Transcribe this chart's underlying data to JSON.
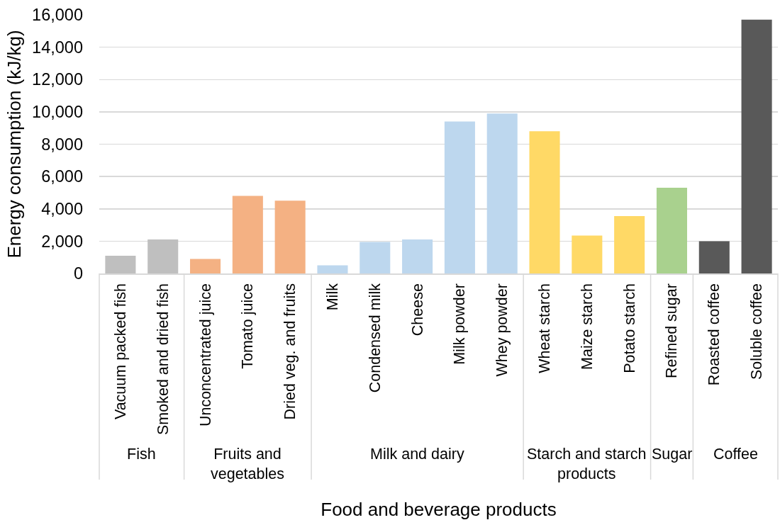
{
  "chart_data": {
    "type": "bar",
    "xlabel": "Food and beverage products",
    "ylabel": "Energy consumption (kJ/kg)",
    "categories": [
      "Vacuum packed fish",
      "Smoked and dried fish",
      "Unconcentrated juice",
      "Tomato juice",
      "Dried veg. and fruits",
      "Milk",
      "Condensed milk",
      "Cheese",
      "Milk powder",
      "Whey powder",
      "Wheat starch",
      "Maize starch",
      "Potato starch",
      "Refined sugar",
      "Roasted coffee",
      "Soluble coffee"
    ],
    "values": [
      1100,
      2100,
      900,
      4800,
      4500,
      500,
      1950,
      2100,
      9400,
      9900,
      8800,
      2350,
      3550,
      5300,
      2000,
      15700
    ],
    "colors": [
      "#bfbfbf",
      "#bfbfbf",
      "#f4b183",
      "#f4b183",
      "#f4b183",
      "#bdd7ee",
      "#bdd7ee",
      "#bdd7ee",
      "#bdd7ee",
      "#bdd7ee",
      "#ffd966",
      "#ffd966",
      "#ffd966",
      "#a9d18e",
      "#595959",
      "#595959"
    ],
    "annotations": [
      "Fish",
      "Fruits and vegetables",
      "Milk and dairy",
      "Starch and starch products",
      "Sugar",
      "Coffee"
    ],
    "ylim": [
      0,
      16000
    ],
    "yticks": [
      0,
      {
        "value": 2000,
        "label": "2,000"
      },
      {
        "value": 4000,
        "label": "4,000"
      },
      {
        "value": 6000,
        "label": "6,000"
      },
      {
        "value": 8000,
        "label": "8,000"
      },
      {
        "value": 10000,
        "label": "10,000"
      },
      {
        "value": 12000,
        "label": "12,000"
      },
      {
        "value": 14000,
        "label": "14,000"
      },
      {
        "value": 16000,
        "label": "16,000"
      }
    ],
    "grid": "y"
  }
}
